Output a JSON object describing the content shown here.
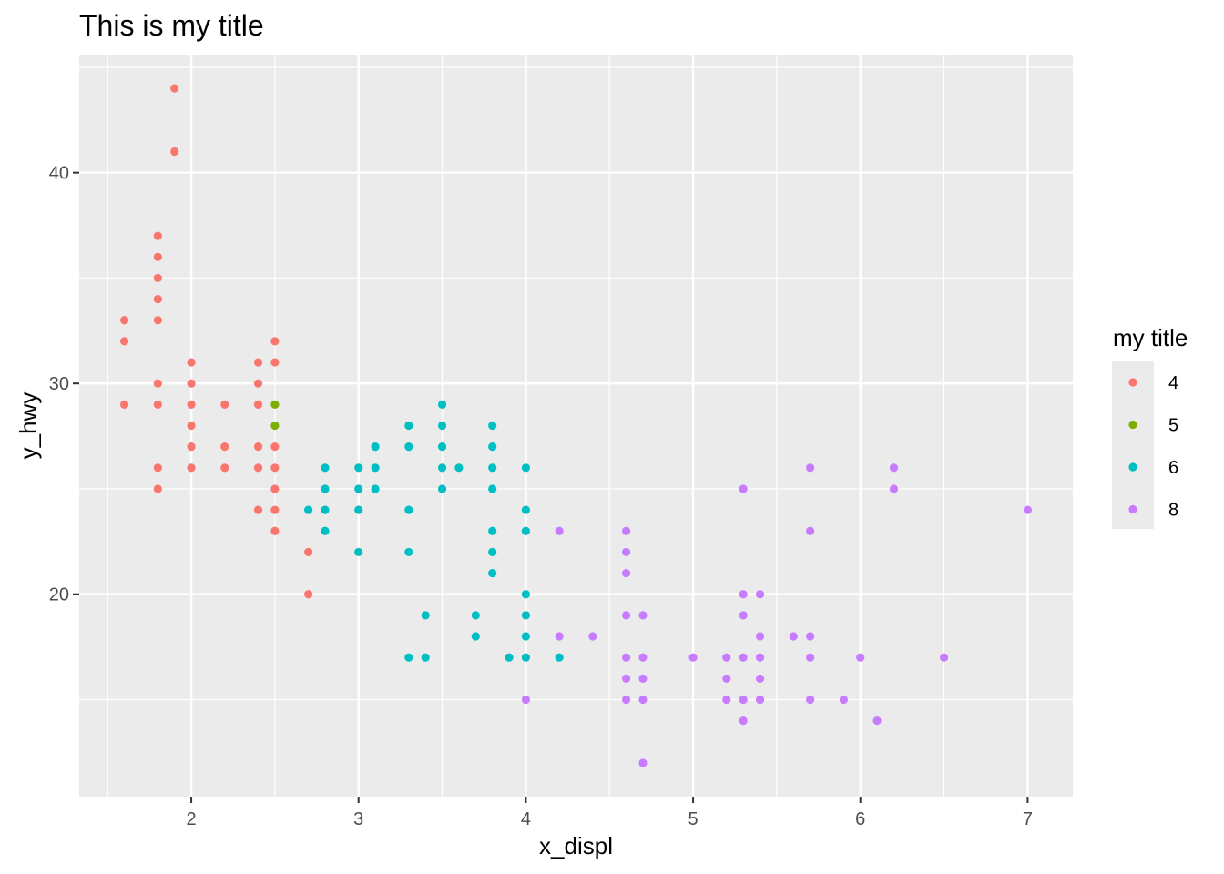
{
  "chart_data": {
    "type": "scatter",
    "title": "This is my title",
    "xlabel": "x_displ",
    "ylabel": "y_hwy",
    "xlim": [
      1.33,
      7.27
    ],
    "ylim": [
      10.4,
      45.6
    ],
    "x_major_ticks": [
      2,
      3,
      4,
      5,
      6,
      7
    ],
    "x_minor_ticks": [
      1.5,
      2.5,
      3.5,
      4.5,
      5.5,
      6.5
    ],
    "y_major_ticks": [
      20,
      30,
      40
    ],
    "y_minor_ticks": [
      15,
      25,
      35,
      45
    ],
    "grid": true,
    "panel_background": "#EBEBEB",
    "grid_color": "#FFFFFF",
    "legend": {
      "title": "my title",
      "position": "right",
      "entries": [
        {
          "label": "4",
          "color": "#F8766D"
        },
        {
          "label": "5",
          "color": "#7CAE00"
        },
        {
          "label": "6",
          "color": "#00BFC4"
        },
        {
          "label": "8",
          "color": "#C77CFF"
        }
      ]
    },
    "series": [
      {
        "name": "4",
        "color": "#F8766D",
        "points": [
          [
            1.6,
            33
          ],
          [
            1.6,
            32
          ],
          [
            1.6,
            29
          ],
          [
            1.8,
            37
          ],
          [
            1.8,
            36
          ],
          [
            1.8,
            35
          ],
          [
            1.8,
            34
          ],
          [
            1.8,
            33
          ],
          [
            1.8,
            30
          ],
          [
            1.8,
            29
          ],
          [
            1.8,
            26
          ],
          [
            1.8,
            25
          ],
          [
            1.9,
            44
          ],
          [
            1.9,
            41
          ],
          [
            2.0,
            31
          ],
          [
            2.0,
            30
          ],
          [
            2.0,
            29
          ],
          [
            2.0,
            28
          ],
          [
            2.0,
            27
          ],
          [
            2.0,
            26
          ],
          [
            2.2,
            29
          ],
          [
            2.2,
            27
          ],
          [
            2.2,
            26
          ],
          [
            2.4,
            31
          ],
          [
            2.4,
            30
          ],
          [
            2.4,
            29
          ],
          [
            2.4,
            27
          ],
          [
            2.4,
            26
          ],
          [
            2.4,
            24
          ],
          [
            2.5,
            32
          ],
          [
            2.5,
            31
          ],
          [
            2.5,
            27
          ],
          [
            2.5,
            26
          ],
          [
            2.5,
            25
          ],
          [
            2.5,
            24
          ],
          [
            2.5,
            23
          ],
          [
            2.7,
            22
          ],
          [
            2.7,
            20
          ]
        ]
      },
      {
        "name": "5",
        "color": "#7CAE00",
        "points": [
          [
            2.5,
            29
          ],
          [
            2.5,
            28
          ]
        ]
      },
      {
        "name": "6",
        "color": "#00BFC4",
        "points": [
          [
            2.7,
            24
          ],
          [
            2.8,
            26
          ],
          [
            2.8,
            25
          ],
          [
            2.8,
            24
          ],
          [
            2.8,
            23
          ],
          [
            3.0,
            26
          ],
          [
            3.0,
            25
          ],
          [
            3.0,
            24
          ],
          [
            3.0,
            22
          ],
          [
            3.1,
            27
          ],
          [
            3.1,
            26
          ],
          [
            3.1,
            25
          ],
          [
            3.3,
            28
          ],
          [
            3.3,
            27
          ],
          [
            3.3,
            24
          ],
          [
            3.3,
            22
          ],
          [
            3.3,
            17
          ],
          [
            3.4,
            19
          ],
          [
            3.4,
            17
          ],
          [
            3.5,
            29
          ],
          [
            3.5,
            28
          ],
          [
            3.5,
            27
          ],
          [
            3.5,
            26
          ],
          [
            3.5,
            25
          ],
          [
            3.6,
            26
          ],
          [
            3.7,
            19
          ],
          [
            3.7,
            18
          ],
          [
            3.8,
            28
          ],
          [
            3.8,
            27
          ],
          [
            3.8,
            26
          ],
          [
            3.8,
            25
          ],
          [
            3.8,
            23
          ],
          [
            3.8,
            22
          ],
          [
            3.8,
            21
          ],
          [
            3.9,
            17
          ],
          [
            4.0,
            26
          ],
          [
            4.0,
            24
          ],
          [
            4.0,
            23
          ],
          [
            4.0,
            20
          ],
          [
            4.0,
            19
          ],
          [
            4.0,
            18
          ],
          [
            4.0,
            17
          ],
          [
            4.2,
            17
          ]
        ]
      },
      {
        "name": "8",
        "color": "#C77CFF",
        "points": [
          [
            4.0,
            15
          ],
          [
            4.2,
            23
          ],
          [
            4.2,
            18
          ],
          [
            4.4,
            18
          ],
          [
            4.6,
            23
          ],
          [
            4.6,
            22
          ],
          [
            4.6,
            21
          ],
          [
            4.6,
            19
          ],
          [
            4.6,
            17
          ],
          [
            4.6,
            16
          ],
          [
            4.6,
            15
          ],
          [
            4.7,
            19
          ],
          [
            4.7,
            17
          ],
          [
            4.7,
            16
          ],
          [
            4.7,
            15
          ],
          [
            4.7,
            12
          ],
          [
            5.0,
            17
          ],
          [
            5.2,
            17
          ],
          [
            5.2,
            16
          ],
          [
            5.2,
            15
          ],
          [
            5.3,
            25
          ],
          [
            5.3,
            20
          ],
          [
            5.3,
            19
          ],
          [
            5.3,
            17
          ],
          [
            5.3,
            15
          ],
          [
            5.3,
            14
          ],
          [
            5.4,
            20
          ],
          [
            5.4,
            18
          ],
          [
            5.4,
            17
          ],
          [
            5.4,
            16
          ],
          [
            5.4,
            15
          ],
          [
            5.6,
            18
          ],
          [
            5.7,
            26
          ],
          [
            5.7,
            23
          ],
          [
            5.7,
            18
          ],
          [
            5.7,
            17
          ],
          [
            5.7,
            15
          ],
          [
            5.9,
            15
          ],
          [
            6.0,
            17
          ],
          [
            6.1,
            14
          ],
          [
            6.2,
            26
          ],
          [
            6.2,
            25
          ],
          [
            6.5,
            17
          ],
          [
            7.0,
            24
          ]
        ]
      }
    ]
  }
}
